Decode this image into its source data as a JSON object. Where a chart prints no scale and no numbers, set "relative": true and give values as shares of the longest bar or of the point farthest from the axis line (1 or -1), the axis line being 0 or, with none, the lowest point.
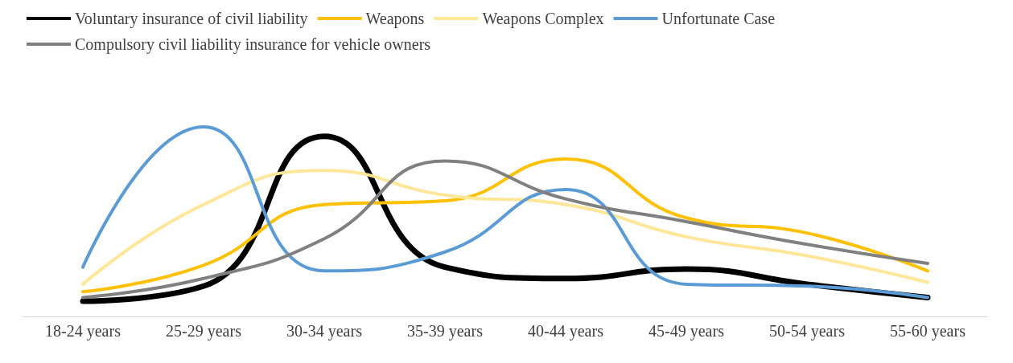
{
  "chart_data": {
    "type": "line",
    "relative": true,
    "legend": "top",
    "grid": false,
    "marker": "none",
    "line_style": "solid",
    "categories": [
      "18-24 years",
      "25-29 years",
      "30-34 years",
      "35-39 years",
      "40-44 years",
      "45-49 years",
      "50-54 years",
      "55-60 years"
    ],
    "series": [
      {
        "name": "Voluntary insurance of civil liability",
        "color": "#000000",
        "values": [
          0.08,
          0.16,
          0.95,
          0.26,
          0.2,
          0.25,
          0.17,
          0.1
        ]
      },
      {
        "name": "Weapons",
        "color": "#ffc000",
        "values": [
          0.13,
          0.27,
          0.59,
          0.61,
          0.83,
          0.52,
          0.44,
          0.24
        ]
      },
      {
        "name": "Weapons Complex",
        "color": "#ffe699",
        "values": [
          0.17,
          0.59,
          0.77,
          0.64,
          0.59,
          0.42,
          0.32,
          0.18
        ]
      },
      {
        "name": "Unfortunate Case",
        "color": "#5b9bd5",
        "values": [
          0.26,
          1,
          0.24,
          0.34,
          0.67,
          0.17,
          0.16,
          0.1
        ]
      },
      {
        "name": "Compulsory civil liability insurance for vehicle owners",
        "color": "#808080",
        "values": [
          0.1,
          0.2,
          0.41,
          0.82,
          0.62,
          0.5,
          0.38,
          0.28
        ]
      }
    ]
  }
}
